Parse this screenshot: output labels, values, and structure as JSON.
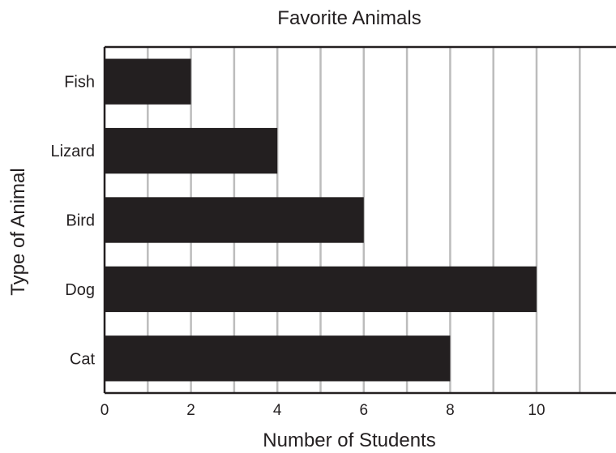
{
  "chart_data": {
    "type": "bar",
    "orientation": "horizontal",
    "title": "Favorite Animals",
    "xlabel": "Number of Students",
    "ylabel": "Type of Animal",
    "categories": [
      "Fish",
      "Lizard",
      "Bird",
      "Dog",
      "Cat"
    ],
    "values": [
      2,
      4,
      6,
      10,
      8
    ],
    "xlim": [
      0,
      11.6
    ],
    "x_ticks": [
      "0",
      "2",
      "4",
      "6",
      "8",
      "10"
    ],
    "grid": true,
    "legend": "none",
    "colors": {
      "bar": "#231f20",
      "grid": "#bcbcbc",
      "axis": "#231f20"
    }
  }
}
